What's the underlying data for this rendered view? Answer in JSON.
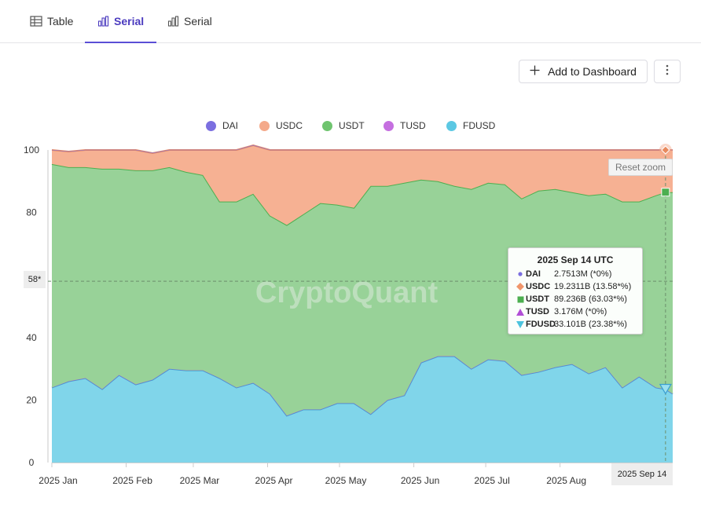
{
  "tabs": [
    {
      "label": "Table",
      "icon": "table-icon"
    },
    {
      "label": "Serial",
      "icon": "bar-chart-icon",
      "active": true
    },
    {
      "label": "Serial",
      "icon": "bar-chart-icon"
    }
  ],
  "toolbar": {
    "add_dashboard_label": "Add to Dashboard",
    "more_icon": "more-vertical-icon"
  },
  "watermark": "CryptoQuant",
  "reset_zoom_label": "Reset zoom",
  "crosshair": {
    "date_label": "2025 Sep 14",
    "y_label": "58*"
  },
  "tooltip": {
    "title": "2025 Sep 14 UTC",
    "rows": [
      {
        "name": "DAI",
        "value": "2.7513M (*0%)",
        "color": "#7b6fe0"
      },
      {
        "name": "USDC",
        "value": "19.2311B (13.58*%)",
        "color": "#f0956b"
      },
      {
        "name": "USDT",
        "value": "89.236B (63.03*%)",
        "color": "#4caf50"
      },
      {
        "name": "TUSD",
        "value": "3.176M (*0%)",
        "color": "#b14ed6"
      },
      {
        "name": "FDUSD",
        "value": "33.101B (23.38*%)",
        "color": "#4cc3de"
      }
    ]
  },
  "chart_data": {
    "type": "area",
    "stacking": "percent",
    "title": "",
    "xlabel": "",
    "ylabel": "",
    "ylim": [
      0,
      100
    ],
    "yticks": [
      0,
      20,
      40,
      80,
      100
    ],
    "x_tick_labels": [
      "2025 Jan",
      "2025 Feb",
      "2025 Mar",
      "2025 Apr",
      "2025 May",
      "2025 Jun",
      "2025 Jul",
      "2025 Aug"
    ],
    "x": [
      "2025-01-01",
      "2025-01-08",
      "2025-01-15",
      "2025-01-22",
      "2025-01-29",
      "2025-02-05",
      "2025-02-12",
      "2025-02-19",
      "2025-02-26",
      "2025-03-05",
      "2025-03-12",
      "2025-03-19",
      "2025-03-26",
      "2025-04-02",
      "2025-04-09",
      "2025-04-16",
      "2025-04-23",
      "2025-04-30",
      "2025-05-07",
      "2025-05-14",
      "2025-05-21",
      "2025-05-28",
      "2025-06-04",
      "2025-06-11",
      "2025-06-18",
      "2025-06-25",
      "2025-07-02",
      "2025-07-09",
      "2025-07-16",
      "2025-07-23",
      "2025-07-30",
      "2025-08-06",
      "2025-08-13",
      "2025-08-20",
      "2025-08-27",
      "2025-09-03",
      "2025-09-10",
      "2025-09-14",
      "2025-09-17"
    ],
    "series": [
      {
        "name": "DAI",
        "color": "#7b6fe0",
        "values": [
          0,
          0,
          0,
          0,
          0,
          0,
          0,
          0,
          0,
          0,
          0,
          0,
          0,
          0,
          0,
          0,
          0,
          0,
          0,
          0,
          0,
          0,
          0,
          0,
          0,
          0,
          0,
          0,
          0,
          0,
          0,
          0,
          0,
          0,
          0,
          0,
          0,
          0,
          0
        ]
      },
      {
        "name": "USDC",
        "color": "#f4a98a",
        "values": [
          4.5,
          5.0,
          5.5,
          6.0,
          6.0,
          6.5,
          5.5,
          5.5,
          7.0,
          8.0,
          16.5,
          16.5,
          15.5,
          21.0,
          24.0,
          20.5,
          17.0,
          17.5,
          18.5,
          11.5,
          11.5,
          10.5,
          9.5,
          10.0,
          11.5,
          12.5,
          10.5,
          11.0,
          15.5,
          13.0,
          12.5,
          13.5,
          14.5,
          14.0,
          16.5,
          16.5,
          14.5,
          13.5,
          13.5
        ]
      },
      {
        "name": "USDT",
        "color": "#96d196",
        "values": [
          71.5,
          68.5,
          67.5,
          70.5,
          66.0,
          68.5,
          67.0,
          64.5,
          63.5,
          62.5,
          56.5,
          59.5,
          60.5,
          57.0,
          61.0,
          62.5,
          66.0,
          63.5,
          62.5,
          73.0,
          68.5,
          68.0,
          58.5,
          56.0,
          54.5,
          57.5,
          56.5,
          56.5,
          56.5,
          58.0,
          57.0,
          55.0,
          57.0,
          55.5,
          59.5,
          56.0,
          61.5,
          63.0,
          64.5
        ]
      },
      {
        "name": "TUSD",
        "color": "#c56fe0",
        "values": [
          0,
          0,
          0,
          0,
          0,
          0,
          0,
          0,
          0,
          0,
          0,
          0,
          0,
          0,
          0,
          0,
          0,
          0,
          0,
          0,
          0,
          0,
          0,
          0,
          0,
          0,
          0,
          0,
          0,
          0,
          0,
          0,
          0,
          0,
          0,
          0,
          0,
          0,
          0
        ]
      },
      {
        "name": "FDUSD",
        "color": "#7fd6ea",
        "values": [
          24.0,
          26.0,
          27.0,
          23.5,
          28.0,
          25.0,
          26.5,
          30.0,
          29.5,
          29.5,
          27.0,
          24.0,
          25.5,
          22.0,
          15.0,
          17.0,
          17.0,
          19.0,
          19.0,
          15.5,
          20.0,
          21.5,
          32.0,
          34.0,
          34.0,
          30.0,
          33.0,
          32.5,
          28.0,
          29.0,
          30.5,
          31.5,
          28.5,
          30.5,
          24.0,
          27.5,
          24.0,
          23.5,
          22.0
        ]
      }
    ],
    "legend_position": "top-center",
    "grid": false
  }
}
